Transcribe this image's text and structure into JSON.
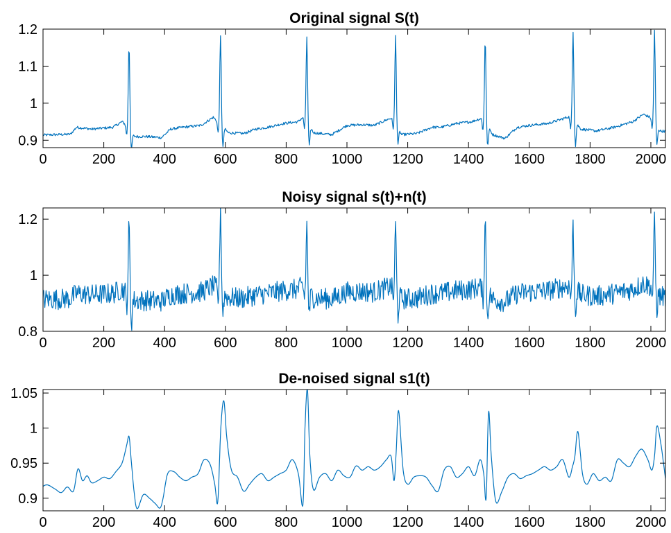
{
  "colors": {
    "line": "#0072BD",
    "axes": "#000000",
    "background": "#ffffff"
  },
  "chart_data": [
    {
      "type": "line",
      "title": "Original signal S(t)",
      "xlabel": "",
      "ylabel": "",
      "xlim": [
        0,
        2048
      ],
      "ylim": [
        0.88,
        1.2
      ],
      "xticks": [
        0,
        200,
        400,
        600,
        800,
        1000,
        1200,
        1400,
        1600,
        1800,
        2000
      ],
      "yticks": [
        0.9,
        1,
        1.1,
        1.2
      ],
      "ytick_labels": [
        "0.9",
        "1",
        "1.1",
        "1.2"
      ],
      "grid": false,
      "noise": 0.0035,
      "beats": [
        283,
        584,
        868,
        1160,
        1455,
        1744,
        2012
      ],
      "peaks": [
        1.16,
        1.18,
        1.18,
        1.183,
        1.175,
        1.195,
        1.195
      ],
      "troughs": [
        0.885,
        0.888,
        0.895,
        0.9,
        0.893,
        0.893,
        0.898
      ],
      "series": [
        {
          "x": [
            0,
            40,
            90,
            110,
            160,
            230,
            260,
            275,
            300,
            340,
            390,
            420,
            460,
            520,
            560,
            575,
            610,
            660,
            700,
            740,
            790,
            840,
            858,
            890,
            950,
            1000,
            1050,
            1090,
            1130,
            1148,
            1180,
            1230,
            1280,
            1310,
            1360,
            1410,
            1445,
            1480,
            1520,
            1560,
            1600,
            1660,
            1700,
            1735,
            1770,
            1820,
            1880,
            1940,
            1975,
            2003,
            2030,
            2048
          ],
          "values": [
            0.914,
            0.915,
            0.916,
            0.935,
            0.93,
            0.935,
            0.95,
            0.94,
            0.91,
            0.91,
            0.907,
            0.93,
            0.935,
            0.94,
            0.962,
            0.95,
            0.92,
            0.918,
            0.93,
            0.935,
            0.945,
            0.95,
            0.965,
            0.92,
            0.915,
            0.94,
            0.942,
            0.94,
            0.955,
            0.96,
            0.915,
            0.918,
            0.935,
            0.935,
            0.945,
            0.95,
            0.96,
            0.915,
            0.905,
            0.935,
            0.94,
            0.945,
            0.955,
            0.965,
            0.93,
            0.925,
            0.935,
            0.95,
            0.97,
            0.96,
            0.925,
            0.924
          ]
        }
      ]
    },
    {
      "type": "line",
      "title": "Noisy signal s(t)+n(t)",
      "xlabel": "",
      "ylabel": "",
      "xlim": [
        0,
        2048
      ],
      "ylim": [
        0.8,
        1.24
      ],
      "xticks": [
        0,
        200,
        400,
        600,
        800,
        1000,
        1200,
        1400,
        1600,
        1800,
        2000
      ],
      "yticks": [
        0.8,
        1,
        1.2
      ],
      "ytick_labels": [
        "0.8",
        "1",
        "1.2"
      ],
      "grid": false,
      "noise": 0.038,
      "beats": [
        283,
        584,
        868,
        1160,
        1455,
        1744,
        2012
      ],
      "peaks": [
        1.18,
        1.24,
        1.18,
        1.18,
        1.2,
        1.18,
        1.2
      ],
      "troughs": [
        0.84,
        0.875,
        0.87,
        0.87,
        0.86,
        0.88,
        0.89
      ],
      "series": [
        {
          "x": [
            0,
            40,
            90,
            110,
            160,
            230,
            260,
            275,
            300,
            340,
            390,
            420,
            460,
            520,
            560,
            575,
            610,
            660,
            700,
            740,
            790,
            840,
            858,
            890,
            950,
            1000,
            1050,
            1090,
            1130,
            1148,
            1180,
            1230,
            1280,
            1310,
            1360,
            1410,
            1445,
            1480,
            1520,
            1560,
            1600,
            1660,
            1700,
            1735,
            1770,
            1820,
            1880,
            1940,
            1975,
            2003,
            2030,
            2048
          ],
          "values": [
            0.914,
            0.915,
            0.916,
            0.935,
            0.93,
            0.935,
            0.95,
            0.94,
            0.91,
            0.91,
            0.907,
            0.93,
            0.935,
            0.94,
            0.962,
            0.95,
            0.92,
            0.918,
            0.93,
            0.935,
            0.945,
            0.95,
            0.965,
            0.92,
            0.915,
            0.94,
            0.942,
            0.94,
            0.955,
            0.96,
            0.915,
            0.918,
            0.935,
            0.935,
            0.945,
            0.95,
            0.96,
            0.915,
            0.905,
            0.935,
            0.94,
            0.945,
            0.955,
            0.965,
            0.93,
            0.925,
            0.935,
            0.95,
            0.97,
            0.96,
            0.925,
            0.924
          ]
        }
      ]
    },
    {
      "type": "line",
      "title": "De-noised signal s1(t)",
      "xlabel": "",
      "ylabel": "",
      "xlim": [
        0,
        2048
      ],
      "ylim": [
        0.882,
        1.055
      ],
      "xticks": [
        0,
        200,
        400,
        600,
        800,
        1000,
        1200,
        1400,
        1600,
        1800,
        2000
      ],
      "yticks": [
        0.9,
        0.95,
        1,
        1.05
      ],
      "ytick_labels": [
        "0.9",
        "0.95",
        "1",
        "1.05"
      ],
      "grid": false,
      "series": [
        {
          "x": [
            0,
            15,
            40,
            60,
            80,
            100,
            115,
            130,
            145,
            160,
            180,
            200,
            220,
            240,
            260,
            275,
            283,
            290,
            300,
            310,
            330,
            350,
            370,
            385,
            395,
            410,
            430,
            450,
            470,
            490,
            510,
            530,
            550,
            565,
            575,
            585,
            595,
            605,
            620,
            640,
            660,
            680,
            700,
            720,
            740,
            760,
            780,
            800,
            820,
            840,
            855,
            862,
            870,
            878,
            890,
            910,
            930,
            950,
            970,
            990,
            1010,
            1030,
            1050,
            1070,
            1090,
            1110,
            1130,
            1145,
            1155,
            1162,
            1170,
            1185,
            1200,
            1220,
            1240,
            1260,
            1280,
            1300,
            1320,
            1340,
            1360,
            1380,
            1400,
            1420,
            1438,
            1450,
            1458,
            1466,
            1475,
            1490,
            1510,
            1530,
            1550,
            1570,
            1590,
            1610,
            1630,
            1650,
            1670,
            1690,
            1710,
            1730,
            1742,
            1750,
            1760,
            1775,
            1790,
            1810,
            1830,
            1850,
            1870,
            1890,
            1910,
            1930,
            1950,
            1970,
            1990,
            2003,
            2012,
            2020,
            2032,
            2040,
            2048
          ],
          "values": [
            0.917,
            0.919,
            0.913,
            0.908,
            0.916,
            0.91,
            0.942,
            0.925,
            0.932,
            0.922,
            0.925,
            0.93,
            0.928,
            0.938,
            0.95,
            0.975,
            0.988,
            0.955,
            0.908,
            0.885,
            0.905,
            0.9,
            0.892,
            0.886,
            0.9,
            0.935,
            0.938,
            0.93,
            0.925,
            0.93,
            0.935,
            0.955,
            0.948,
            0.92,
            0.895,
            1.0,
            1.039,
            0.985,
            0.94,
            0.93,
            0.91,
            0.92,
            0.93,
            0.935,
            0.925,
            0.93,
            0.935,
            0.94,
            0.955,
            0.935,
            0.89,
            1.0,
            1.055,
            0.96,
            0.912,
            0.93,
            0.935,
            0.925,
            0.94,
            0.932,
            0.93,
            0.946,
            0.94,
            0.945,
            0.94,
            0.945,
            0.955,
            0.96,
            0.925,
            0.965,
            1.025,
            0.94,
            0.92,
            0.93,
            0.932,
            0.93,
            0.918,
            0.91,
            0.94,
            0.945,
            0.93,
            0.935,
            0.945,
            0.932,
            0.955,
            0.935,
            0.9,
            1.023,
            0.96,
            0.895,
            0.91,
            0.93,
            0.935,
            0.928,
            0.932,
            0.935,
            0.94,
            0.945,
            0.94,
            0.945,
            0.955,
            0.93,
            0.945,
            0.96,
            0.995,
            0.935,
            0.92,
            0.935,
            0.925,
            0.93,
            0.925,
            0.955,
            0.95,
            0.945,
            0.96,
            0.97,
            0.955,
            0.94,
            0.96,
            1.003,
            0.98,
            0.955,
            0.928
          ]
        }
      ]
    }
  ]
}
